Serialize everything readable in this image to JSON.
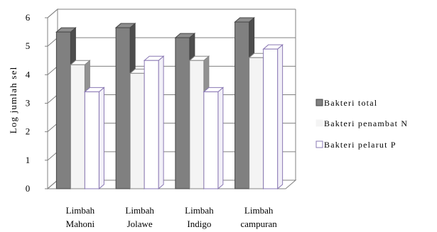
{
  "chart_data": {
    "type": "bar",
    "title": "",
    "xlabel": "",
    "ylabel": "Log jumlah sel",
    "ylim": [
      0,
      6
    ],
    "yticks": [
      "0",
      "1",
      "2",
      "3",
      "4",
      "5",
      "6"
    ],
    "categories": [
      [
        "Limbah",
        "Mahoni"
      ],
      [
        "Limbah",
        "Jolawe"
      ],
      [
        "Limbah",
        "Indigo"
      ],
      [
        "Limbah",
        "campuran"
      ]
    ],
    "series": [
      {
        "name": "Bakteri total",
        "values": [
          5.5,
          5.65,
          5.3,
          5.85
        ],
        "color": "#808080"
      },
      {
        "name": "Bakteri penambat N",
        "values": [
          4.35,
          4.05,
          4.5,
          4.6
        ],
        "color": "#f4f4f4"
      },
      {
        "name": "Bakteri pelarut P",
        "values": [
          3.4,
          4.5,
          3.4,
          4.9
        ],
        "color": "#ffffff",
        "stroke": "#8a78b4"
      }
    ],
    "grid": true,
    "legend_position": "right",
    "style": "3d-columns"
  }
}
